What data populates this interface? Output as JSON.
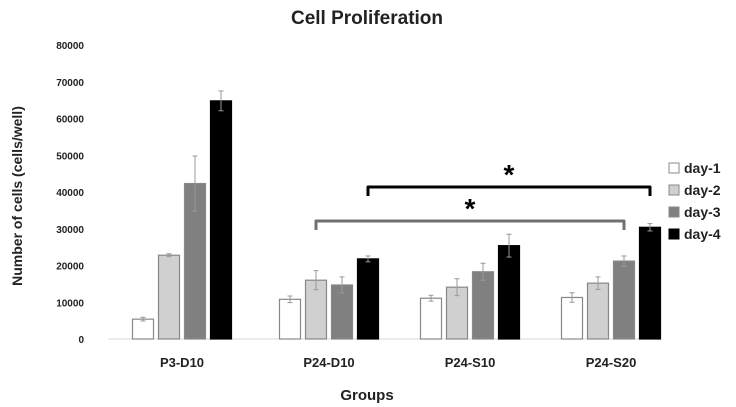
{
  "chart_data": {
    "type": "bar",
    "title": "Cell Proliferation",
    "xlabel": "Groups",
    "ylabel": "Number of cells (cells/well)",
    "ylim": [
      0,
      80000
    ],
    "yticks": [
      "0",
      "10000",
      "20000",
      "30000",
      "40000",
      "50000",
      "60000",
      "70000",
      "80000"
    ],
    "categories": [
      "P3-D10",
      "P24-D10",
      "P24-S10",
      "P24-S20"
    ],
    "series": [
      {
        "name": "day-1",
        "color": "#ffffff",
        "values": [
          5400,
          10800,
          11100,
          11300
        ],
        "errors": [
          500,
          900,
          800,
          1300
        ]
      },
      {
        "name": "day-2",
        "color": "#d0d0d0",
        "values": [
          22800,
          16000,
          14100,
          15200
        ],
        "errors": [
          400,
          2600,
          2300,
          1700
        ]
      },
      {
        "name": "day-3",
        "color": "#808080",
        "values": [
          42300,
          14700,
          18300,
          21200
        ],
        "errors": [
          7500,
          2200,
          2300,
          1400
        ]
      },
      {
        "name": "day-4",
        "color": "#000000",
        "values": [
          64800,
          21800,
          25400,
          30400
        ],
        "errors": [
          2700,
          800,
          3100,
          1000
        ]
      }
    ],
    "legend": "right",
    "grid": false,
    "annotations": [
      {
        "label": "*",
        "from_group": "P24-D10",
        "from_series": "day-4",
        "to_group": "P24-S20",
        "to_series": "day-4",
        "color": "#000000"
      },
      {
        "label": "*",
        "from_group": "P24-D10",
        "from_series": "day-2",
        "to_group": "P24-S20",
        "to_series": "day-3",
        "color": "#707070"
      }
    ]
  }
}
